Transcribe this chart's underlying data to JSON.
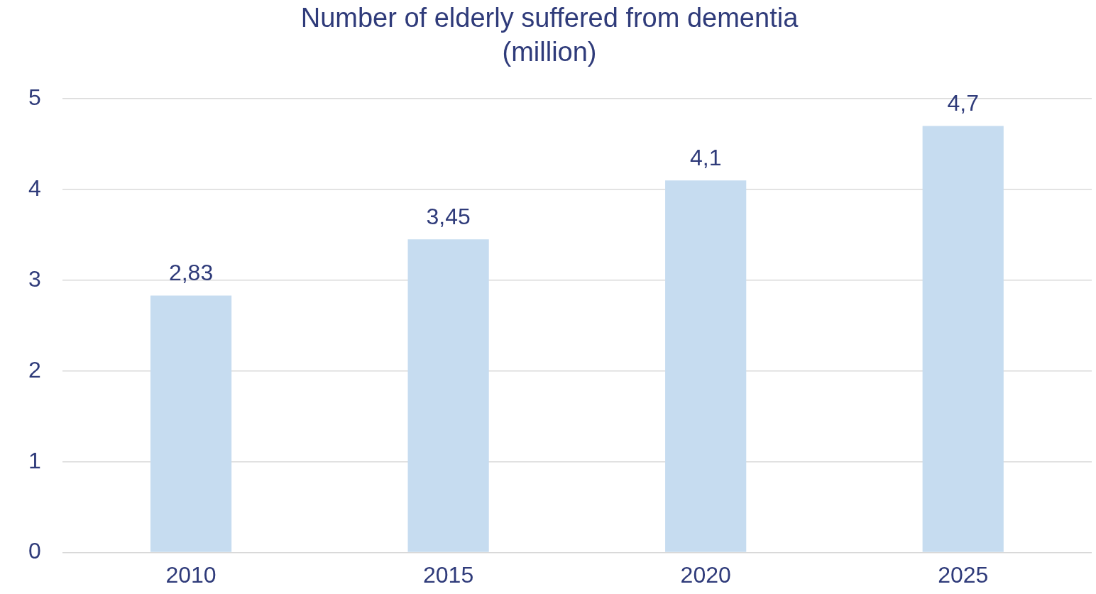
{
  "chart_data": {
    "type": "bar",
    "title": "Number of elderly suffered from dementia\n(million)",
    "categories": [
      "2010",
      "2015",
      "2020",
      "2025"
    ],
    "values": [
      2.83,
      3.45,
      4.1,
      4.7
    ],
    "value_labels": [
      "2,83",
      "3,45",
      "4,1",
      "4,7"
    ],
    "color": "#c6dcf0",
    "ylim": [
      0,
      5
    ],
    "yticks": [
      0,
      1,
      2,
      3,
      4,
      5
    ],
    "grid": "y",
    "legend": false
  }
}
